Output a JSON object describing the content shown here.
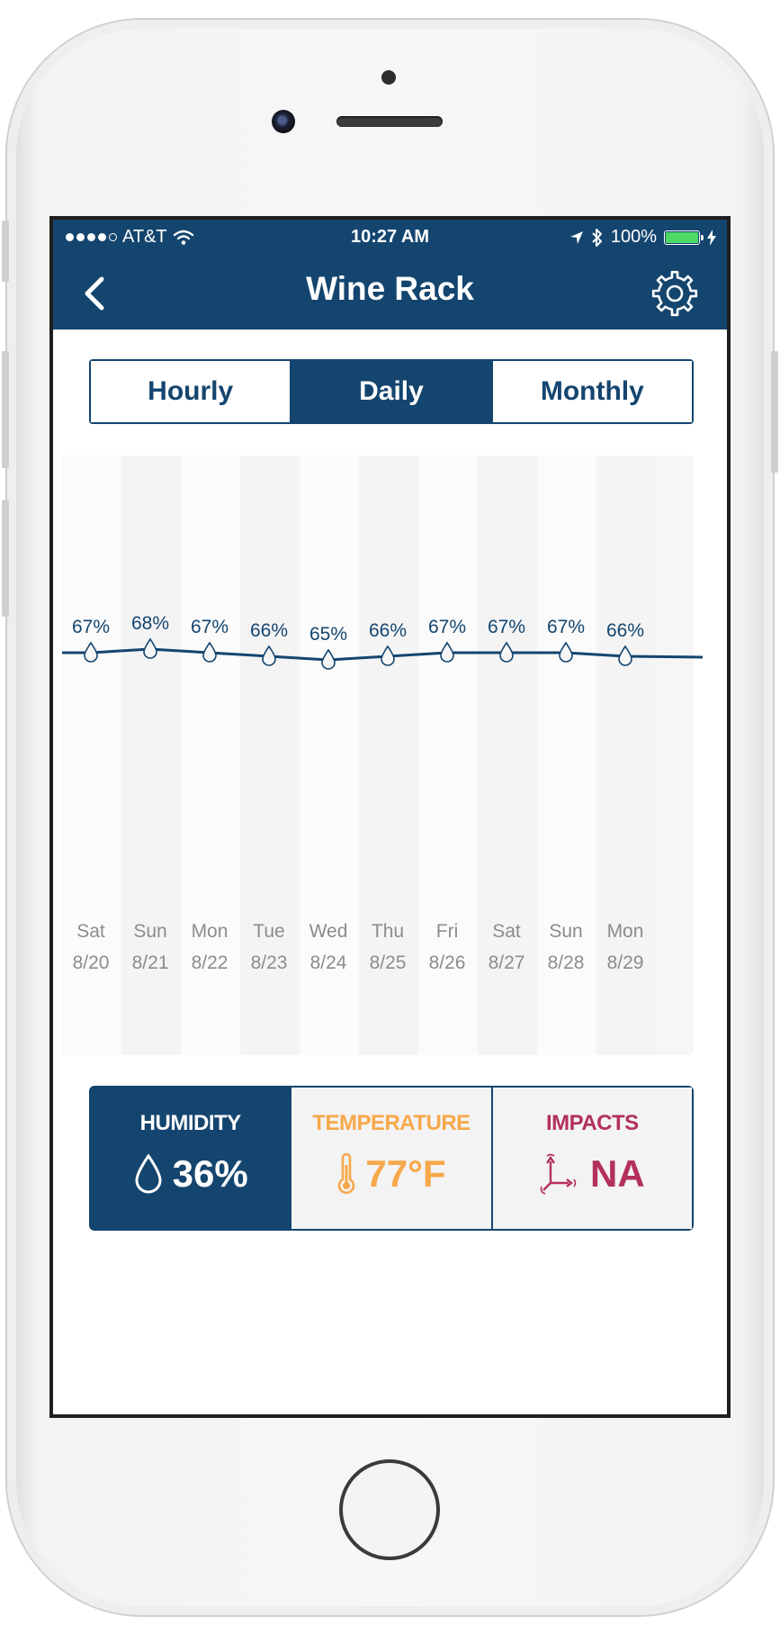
{
  "status_bar": {
    "carrier": "AT&T",
    "time": "10:27 AM",
    "battery": "100%",
    "battery_color": "#4cd964"
  },
  "nav": {
    "title": "Wine Rack",
    "back_icon": "chevron-left-icon",
    "settings_icon": "gear-icon"
  },
  "tabs": [
    {
      "label": "Hourly",
      "active": false
    },
    {
      "label": "Daily",
      "active": true
    },
    {
      "label": "Monthly",
      "active": false
    }
  ],
  "chart_data": {
    "type": "line",
    "categories": [
      {
        "day": "Sat",
        "date": "8/20"
      },
      {
        "day": "Sun",
        "date": "8/21"
      },
      {
        "day": "Mon",
        "date": "8/22"
      },
      {
        "day": "Tue",
        "date": "8/23"
      },
      {
        "day": "Wed",
        "date": "8/24"
      },
      {
        "day": "Thu",
        "date": "8/25"
      },
      {
        "day": "Fri",
        "date": "8/26"
      },
      {
        "day": "Sat",
        "date": "8/27"
      },
      {
        "day": "Sun",
        "date": "8/28"
      },
      {
        "day": "Mon",
        "date": "8/29"
      }
    ],
    "values": [
      67,
      68,
      67,
      66,
      65,
      66,
      67,
      67,
      67,
      66
    ],
    "value_format": "%",
    "series_color": "#14456f",
    "point_icon": "water-drop-icon"
  },
  "stats": [
    {
      "label": "HUMIDITY",
      "value": "36%",
      "icon": "water-drop-icon",
      "color": "#ffffff",
      "active": true
    },
    {
      "label": "TEMPERATURE",
      "value": "77°F",
      "icon": "thermometer-icon",
      "color": "#f7a84a",
      "active": false
    },
    {
      "label": "IMPACTS",
      "value": "NA",
      "icon": "impact-axes-icon",
      "color": "#b3305a",
      "active": false
    }
  ],
  "colors": {
    "primary": "#14456f",
    "temperature": "#f7a84a",
    "impacts": "#b3305a"
  }
}
